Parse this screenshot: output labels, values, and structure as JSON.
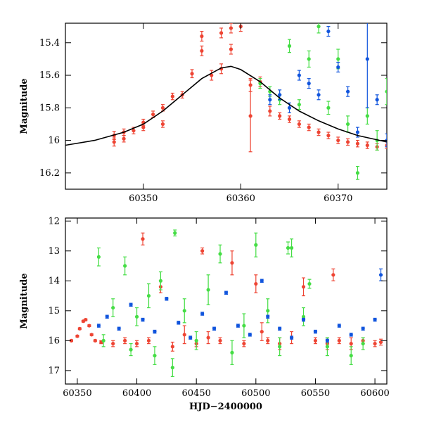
{
  "chart_data": [
    {
      "type": "scatter",
      "title": "",
      "xlabel": "",
      "ylabel": "Magnitude",
      "xlim": [
        60342,
        60375
      ],
      "ylim": [
        16.3,
        15.28
      ],
      "y_inverted": true,
      "grid": false,
      "xticks": [
        60350,
        60360,
        60370
      ],
      "yticks": [
        15.4,
        15.6,
        15.8,
        16,
        16.2
      ],
      "colors": {
        "red": "#ee4433",
        "green": "#44dd44",
        "blue": "#1155dd",
        "model": "#000000"
      },
      "model_curve": {
        "name": "",
        "x": [
          60342,
          60345,
          60348,
          60350,
          60352,
          60354,
          60356,
          60358,
          60359,
          60360,
          60362,
          60364,
          60366,
          60368,
          60370,
          60372,
          60375
        ],
        "y": [
          16.03,
          16.0,
          15.95,
          15.9,
          15.82,
          15.72,
          15.62,
          15.555,
          15.545,
          15.565,
          15.64,
          15.74,
          15.82,
          15.88,
          15.93,
          15.97,
          16.01
        ]
      },
      "series": [
        {
          "name": "",
          "color": "red",
          "x": [
            60347,
            60347,
            60348,
            60348,
            60349,
            60350,
            60350,
            60351,
            60352,
            60352,
            60353,
            60354,
            60355,
            60356,
            60356,
            60357,
            60358,
            60358,
            60359,
            60359,
            60360,
            60361,
            60361,
            60362,
            60363,
            60364,
            60365,
            60366,
            60367,
            60368,
            60369,
            60370,
            60371,
            60372,
            60373,
            60374,
            60375
          ],
          "y": [
            15.97,
            16.01,
            15.95,
            15.99,
            15.94,
            15.89,
            15.92,
            15.84,
            15.8,
            15.9,
            15.73,
            15.72,
            15.59,
            15.45,
            15.36,
            15.6,
            15.34,
            15.56,
            15.31,
            15.44,
            15.3,
            15.66,
            15.85,
            15.64,
            15.82,
            15.85,
            15.87,
            15.9,
            15.92,
            15.95,
            15.97,
            16.0,
            16.01,
            16.02,
            16.03,
            16.04,
            16.03
          ],
          "err": [
            0.025,
            0.025,
            0.02,
            0.02,
            0.02,
            0.02,
            0.02,
            0.02,
            0.02,
            0.02,
            0.02,
            0.02,
            0.025,
            0.03,
            0.03,
            0.03,
            0.03,
            0.03,
            0.03,
            0.03,
            0.03,
            0.04,
            0.22,
            0.03,
            0.03,
            0.02,
            0.02,
            0.02,
            0.02,
            0.02,
            0.02,
            0.02,
            0.02,
            0.02,
            0.02,
            0.02,
            0.02
          ]
        },
        {
          "name": "",
          "color": "green",
          "x": [
            60362,
            60363,
            60364,
            60365,
            60366,
            60367,
            60368,
            60369,
            60370,
            60371,
            60372,
            60373,
            60374,
            60375
          ],
          "y": [
            15.65,
            15.7,
            15.75,
            15.42,
            15.78,
            15.5,
            15.3,
            15.8,
            15.5,
            15.9,
            16.2,
            15.85,
            16.0,
            15.7
          ],
          "err": [
            0.03,
            0.03,
            0.03,
            0.04,
            0.03,
            0.05,
            0.04,
            0.04,
            0.06,
            0.05,
            0.04,
            0.05,
            0.06,
            0.08
          ]
        },
        {
          "name": "",
          "color": "blue",
          "x": [
            60363,
            60364,
            60365,
            60366,
            60367,
            60368,
            60369,
            60370,
            60371,
            60372,
            60373,
            60374,
            60375
          ],
          "y": [
            15.75,
            15.72,
            15.8,
            15.6,
            15.65,
            15.72,
            15.33,
            15.55,
            15.7,
            15.95,
            15.5,
            15.75,
            16.0
          ],
          "err": [
            0.03,
            0.03,
            0.03,
            0.03,
            0.03,
            0.03,
            0.03,
            0.03,
            0.03,
            0.03,
            0.3,
            0.03,
            0.04
          ]
        }
      ]
    },
    {
      "type": "scatter",
      "title": "",
      "xlabel": "HJD−2400000",
      "ylabel": "Magnitude",
      "xlim": [
        60340,
        60610
      ],
      "ylim": [
        17.45,
        11.9
      ],
      "y_inverted": true,
      "grid": false,
      "xticks": [
        60350,
        60400,
        60450,
        60500,
        60550,
        60600
      ],
      "yticks": [
        12,
        13,
        14,
        15,
        16,
        17
      ],
      "colors": {
        "red": "#ee4433",
        "green": "#44dd44",
        "blue": "#1155dd"
      },
      "series": [
        {
          "name": "",
          "color": "red",
          "x": [
            60345,
            60350,
            60352,
            60355,
            60357,
            60360,
            60362,
            60365,
            60370,
            60380,
            60390,
            60400,
            60405,
            60410,
            60420,
            60430,
            60440,
            60450,
            60455,
            60460,
            60470,
            60480,
            60490,
            60500,
            60505,
            60510,
            60520,
            60530,
            60540,
            60550,
            60560,
            60565,
            60570,
            60580,
            60590,
            60600,
            60605
          ],
          "y": [
            16.0,
            15.85,
            15.6,
            15.35,
            15.3,
            15.5,
            15.8,
            16.0,
            16.05,
            16.1,
            16.0,
            16.1,
            12.6,
            16.0,
            14.2,
            16.2,
            15.8,
            16.1,
            13.0,
            15.9,
            16.0,
            13.4,
            16.1,
            14.1,
            15.7,
            16.0,
            16.1,
            15.9,
            14.2,
            16.0,
            16.1,
            13.8,
            16.0,
            16.1,
            16.0,
            16.1,
            16.05
          ],
          "err": [
            0.03,
            0.03,
            0.03,
            0.03,
            0.03,
            0.03,
            0.03,
            0.03,
            0.05,
            0.1,
            0.1,
            0.1,
            0.2,
            0.1,
            0.2,
            0.15,
            0.3,
            0.1,
            0.1,
            0.2,
            0.1,
            0.4,
            0.1,
            0.3,
            0.3,
            0.1,
            0.2,
            0.2,
            0.3,
            0.1,
            0.2,
            0.2,
            0.1,
            0.2,
            0.1,
            0.1,
            0.1
          ]
        },
        {
          "name": "",
          "color": "green",
          "x": [
            60368,
            60372,
            60380,
            60390,
            60395,
            60400,
            60410,
            60415,
            60420,
            60430,
            60432,
            60440,
            60450,
            60460,
            60470,
            60480,
            60490,
            60500,
            60510,
            60520,
            60527,
            60530,
            60540,
            60545,
            60560,
            60580,
            60590
          ],
          "y": [
            13.2,
            16.0,
            14.9,
            13.5,
            16.3,
            15.2,
            14.5,
            16.5,
            14.0,
            16.9,
            12.4,
            15.0,
            16.0,
            14.3,
            13.1,
            16.4,
            15.5,
            12.8,
            15.0,
            16.2,
            12.9,
            12.9,
            15.2,
            14.1,
            16.2,
            16.5,
            16.1
          ],
          "err": [
            0.3,
            0.2,
            0.3,
            0.3,
            0.2,
            0.3,
            0.4,
            0.3,
            0.3,
            0.3,
            0.1,
            0.4,
            0.3,
            0.5,
            0.3,
            0.4,
            0.4,
            0.4,
            0.4,
            0.3,
            0.2,
            0.3,
            0.3,
            0.15,
            0.3,
            0.3,
            0.2
          ]
        },
        {
          "name": "",
          "color": "blue",
          "x": [
            60368,
            60375,
            60385,
            60395,
            60405,
            60415,
            60425,
            60435,
            60445,
            60455,
            60465,
            60475,
            60485,
            60495,
            60505,
            60510,
            60520,
            60530,
            60540,
            60550,
            60560,
            60570,
            60580,
            60590,
            60600,
            60605
          ],
          "y": [
            15.5,
            15.2,
            15.6,
            14.8,
            15.3,
            15.7,
            14.6,
            15.4,
            15.9,
            15.1,
            15.6,
            14.4,
            15.5,
            15.8,
            14.0,
            15.2,
            15.6,
            15.9,
            15.3,
            15.7,
            16.0,
            15.5,
            15.8,
            15.6,
            15.3,
            13.8
          ],
          "err": [
            0.05,
            0.05,
            0.05,
            0.05,
            0.05,
            0.05,
            0.05,
            0.05,
            0.05,
            0.05,
            0.05,
            0.05,
            0.05,
            0.05,
            0.05,
            0.05,
            0.05,
            0.05,
            0.05,
            0.05,
            0.05,
            0.05,
            0.05,
            0.05,
            0.05,
            0.2
          ]
        }
      ]
    }
  ]
}
